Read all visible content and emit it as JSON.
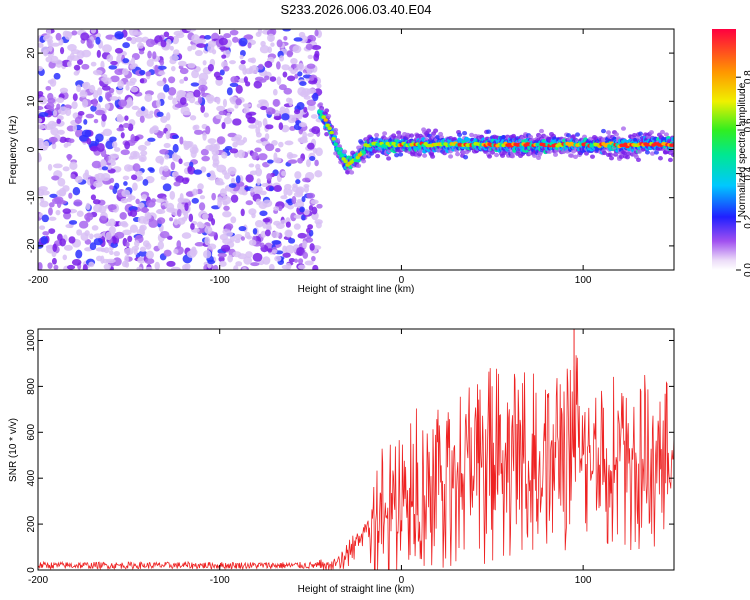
{
  "title": "S233.2026.006.03.40.E04",
  "chart_data": [
    {
      "type": "heatmap",
      "title": "S233.2026.006.03.40.E04",
      "xlabel": "Height of straight line (km)",
      "ylabel": "Frequency (Hz)",
      "xlim": [
        -200,
        150
      ],
      "ylim": [
        -25,
        25
      ],
      "x_ticks": [
        -200,
        -100,
        0,
        100
      ],
      "y_ticks": [
        -20,
        -10,
        0,
        10,
        20
      ],
      "noise_region_x": [
        -200,
        -45
      ],
      "transition": {
        "x": [
          -45,
          -40,
          -35,
          -30,
          -25,
          -20
        ],
        "freq": [
          8,
          5,
          0,
          -3,
          -2,
          0
        ]
      },
      "signal_band_freq": 1,
      "colorbar": {
        "label": "Normalized spectral amplitude",
        "range": [
          0,
          1
        ],
        "ticks": [
          0.0,
          0.2,
          0.4,
          0.6,
          0.8
        ],
        "tick_labels": [
          "0.0",
          "0.2",
          "0.4",
          "0.6",
          "0.8"
        ]
      }
    },
    {
      "type": "line",
      "xlabel": "Height of straight line (km)",
      "ylabel": "SNR (10 * v/v)",
      "xlim": [
        -200,
        150
      ],
      "ylim": [
        0,
        1050
      ],
      "x_ticks": [
        -200,
        -100,
        0,
        100
      ],
      "y_ticks": [
        0,
        200,
        400,
        600,
        800,
        1000
      ],
      "color": "#ee2222",
      "series": [
        {
          "name": "SNR",
          "x": [
            -200,
            -45,
            -35,
            -28,
            -22,
            -15,
            -5,
            0,
            10,
            20,
            30,
            40,
            50,
            60,
            70,
            80,
            90,
            95,
            100,
            110,
            120,
            130,
            140,
            150
          ],
          "mean": [
            20,
            20,
            30,
            80,
            150,
            220,
            280,
            320,
            360,
            390,
            420,
            440,
            460,
            470,
            470,
            480,
            480,
            490,
            490,
            480,
            470,
            460,
            470,
            470
          ],
          "peak": [
            40,
            45,
            60,
            150,
            190,
            500,
            640,
            650,
            720,
            780,
            850,
            880,
            900,
            880,
            860,
            850,
            900,
            1050,
            830,
            860,
            850,
            850,
            850,
            820
          ]
        }
      ]
    }
  ]
}
